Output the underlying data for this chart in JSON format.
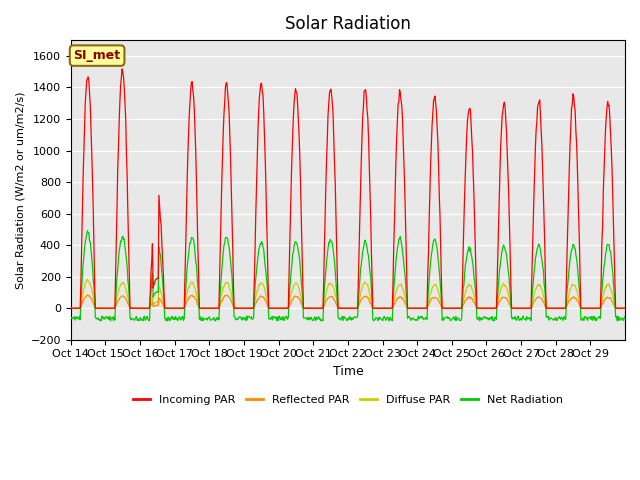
{
  "title": "Solar Radiation",
  "xlabel": "Time",
  "ylabel": "Solar Radiation (W/m2 or um/m2/s)",
  "ylim": [
    -200,
    1700
  ],
  "yticks": [
    -200,
    0,
    200,
    400,
    600,
    800,
    1000,
    1200,
    1400,
    1600
  ],
  "xtick_labels": [
    "Oct 14",
    "Oct 15",
    "Oct 16",
    "Oct 17",
    "Oct 18",
    "Oct 19",
    "Oct 20",
    "Oct 21",
    "Oct 22",
    "Oct 23",
    "Oct 24",
    "Oct 25",
    "Oct 26",
    "Oct 27",
    "Oct 28",
    "Oct 29"
  ],
  "n_days": 16,
  "annotation_text": "SI_met",
  "annotation_color": "#8B0000",
  "annotation_bg": "#FFFF99",
  "annotation_border": "#8B6914",
  "bg_color": "#E8E8E8",
  "colors": {
    "incoming": "#FF0000",
    "reflected": "#FF8C00",
    "diffuse": "#CCCC00",
    "net": "#00CC00"
  },
  "legend_labels": [
    "Incoming PAR",
    "Reflected PAR",
    "Diffuse PAR",
    "Net Radiation"
  ],
  "peak_values": [
    1480,
    1510,
    760,
    1430,
    1430,
    1430,
    1400,
    1400,
    1390,
    1380,
    1340,
    1270,
    1300,
    1310,
    1340,
    1310
  ],
  "net_peak": [
    480,
    460,
    420,
    450,
    450,
    420,
    420,
    430,
    420,
    440,
    430,
    380,
    390,
    400,
    400,
    400
  ],
  "reflected_peak": [
    80,
    75,
    70,
    80,
    80,
    75,
    75,
    75,
    75,
    70,
    70,
    70,
    70,
    70,
    70,
    70
  ],
  "diffuse_peak": [
    175,
    160,
    150,
    165,
    165,
    160,
    160,
    160,
    160,
    150,
    150,
    150,
    150,
    150,
    150,
    150
  ],
  "night_neg_min": -80,
  "night_neg_max": -50
}
